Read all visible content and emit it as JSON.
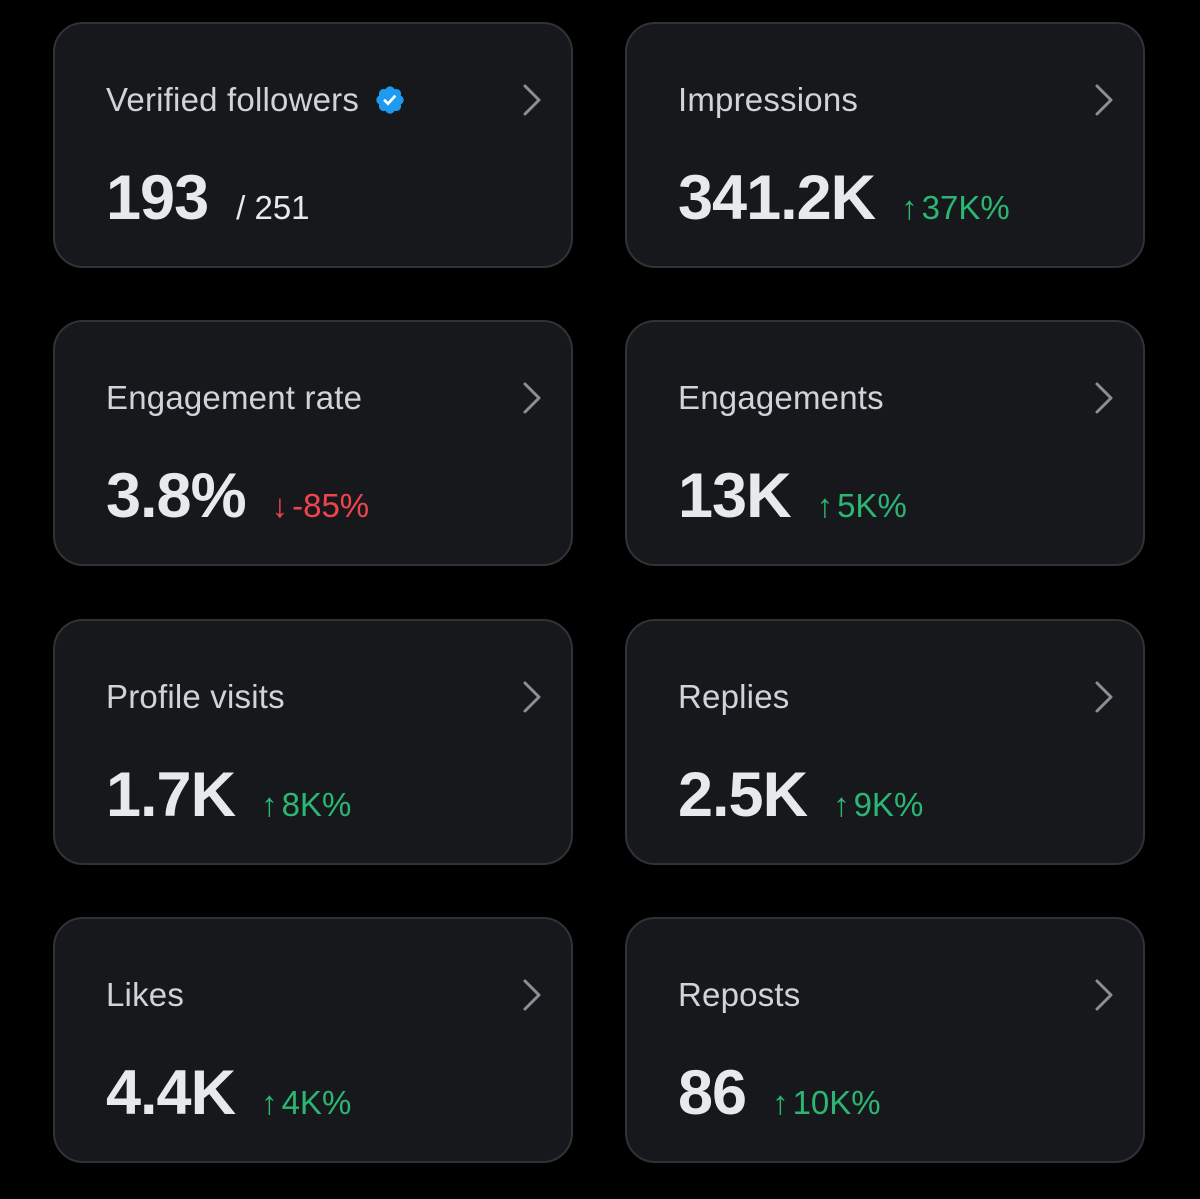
{
  "colors": {
    "background": "#000000",
    "card_bg": "#16181c",
    "card_border": "#2f3336",
    "up": "#2bb673",
    "down": "#f0444d",
    "verified": "#1d9bf0"
  },
  "cards": [
    {
      "title": "Verified followers",
      "icon": "verified-badge-icon",
      "value": "193",
      "suffix": "/ 251"
    },
    {
      "title": "Impressions",
      "value": "341.2K",
      "change_arrow": "↑",
      "change": "37K%",
      "trend": "up"
    },
    {
      "title": "Engagement rate",
      "value": "3.8%",
      "change_arrow": "↓",
      "change": "-85%",
      "trend": "down"
    },
    {
      "title": "Engagements",
      "value": "13K",
      "change_arrow": "↑",
      "change": "5K%",
      "trend": "up"
    },
    {
      "title": "Profile visits",
      "value": "1.7K",
      "change_arrow": "↑",
      "change": "8K%",
      "trend": "up"
    },
    {
      "title": "Replies",
      "value": "2.5K",
      "change_arrow": "↑",
      "change": "9K%",
      "trend": "up"
    },
    {
      "title": "Likes",
      "value": "4.4K",
      "change_arrow": "↑",
      "change": "4K%",
      "trend": "up"
    },
    {
      "title": "Reposts",
      "value": "86",
      "change_arrow": "↑",
      "change": "10K%",
      "trend": "up"
    }
  ]
}
